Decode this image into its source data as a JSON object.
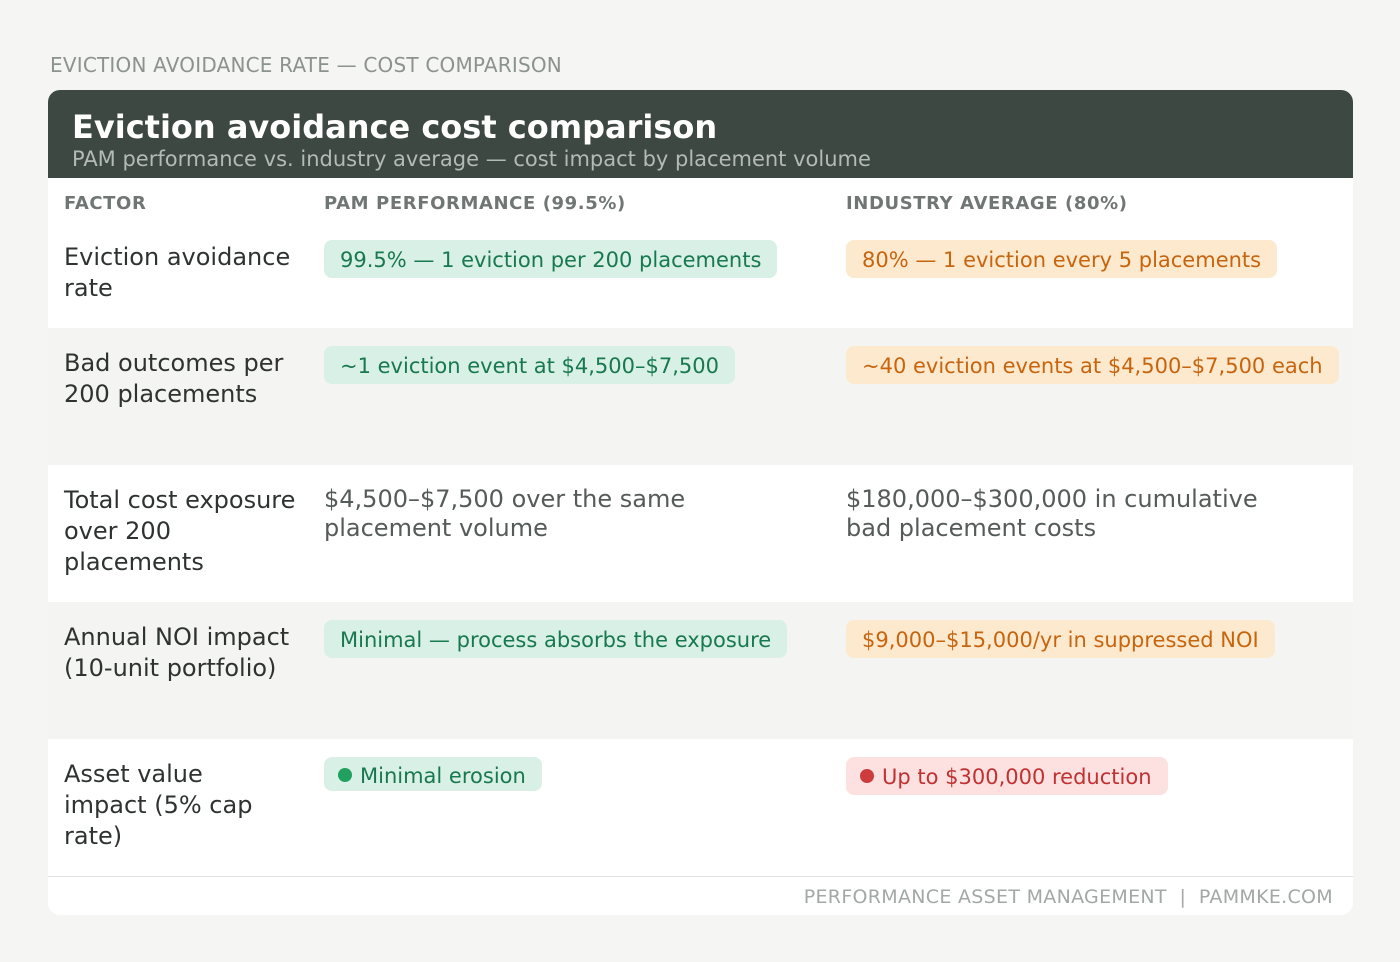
{
  "kicker": "EVICTION AVOIDANCE RATE — COST COMPARISON",
  "header": {
    "title": "Eviction avoidance cost comparison",
    "subtitle": "PAM performance vs. industry average — cost impact by placement volume"
  },
  "columns": {
    "factor": "FACTOR",
    "pam": "PAM PERFORMANCE (99.5%)",
    "industry": "INDUSTRY AVERAGE (80%)"
  },
  "rows": [
    {
      "factor": "Eviction avoidance rate",
      "pam": "99.5% — 1 eviction per 200 placements",
      "industry": "80% — 1 eviction every 5 placements"
    },
    {
      "factor": "Bad outcomes per 200 placements",
      "pam": "~1 eviction event at $4,500–$7,500",
      "industry": "~40 eviction events at $4,500–$7,500 each"
    },
    {
      "factor": "Total cost exposure over 200 placements",
      "pam": "$4,500–$7,500 over the same placement volume",
      "industry": "$180,000–$300,000 in cumulative bad placement costs"
    },
    {
      "factor": "Annual NOI impact (10-unit portfolio)",
      "pam": "Minimal — process absorbs the exposure",
      "industry": "$9,000–$15,000/yr in suppressed NOI"
    },
    {
      "factor": "Asset value impact (5% cap rate)",
      "pam": "Minimal erosion",
      "industry": "Up to $300,000 reduction"
    }
  ],
  "footer": "PERFORMANCE ASSET MANAGEMENT  |  PAMMKE.COM",
  "colors": {
    "header_bg": "#3e4843",
    "good": "#18784f",
    "warn": "#c7650f",
    "bad": "#c03232"
  }
}
